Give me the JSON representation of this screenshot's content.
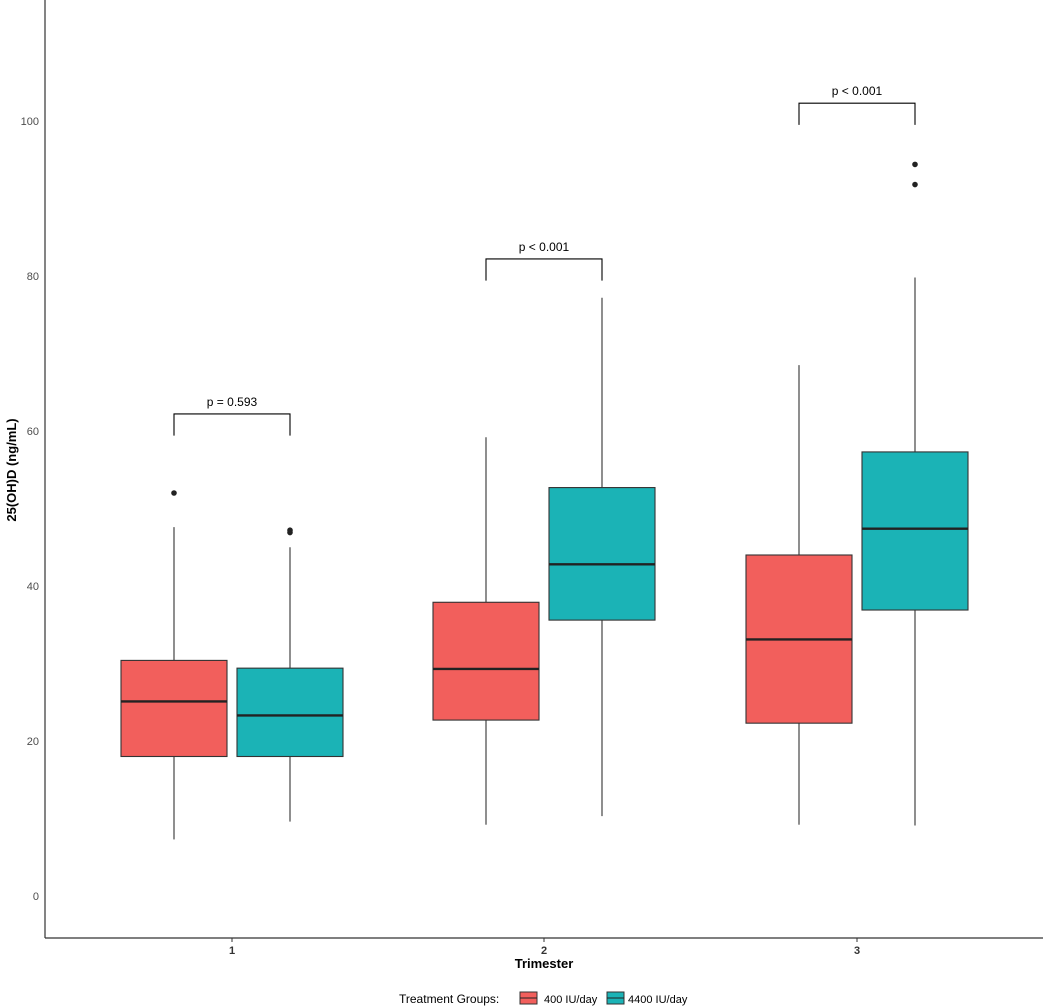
{
  "chart_data": {
    "type": "boxplot",
    "xlabel": "Trimester",
    "ylabel": "25(OH)D (ng/mL)",
    "ylim": [
      -5,
      116
    ],
    "yticks": [
      0,
      20,
      40,
      60,
      80,
      100
    ],
    "categories": [
      "1",
      "2",
      "3"
    ],
    "legend": {
      "title": "Treatment Groups:",
      "placement": "bottom"
    },
    "series": [
      {
        "name": "400 IU/day",
        "color": "#F25F5C",
        "boxes": [
          {
            "category": "1",
            "whisker_low": 7.3,
            "q1": 18.0,
            "median": 25.1,
            "q3": 30.4,
            "whisker_high": 47.6,
            "outliers": [
              52.0
            ]
          },
          {
            "category": "2",
            "whisker_low": 9.2,
            "q1": 22.7,
            "median": 29.3,
            "q3": 37.9,
            "whisker_high": 59.2,
            "outliers": []
          },
          {
            "category": "3",
            "whisker_low": 9.2,
            "q1": 22.3,
            "median": 33.1,
            "q3": 44.0,
            "whisker_high": 68.5,
            "outliers": []
          }
        ]
      },
      {
        "name": "4400 IU/day",
        "color": "#1BB3B6",
        "boxes": [
          {
            "category": "1",
            "whisker_low": 9.6,
            "q1": 18.0,
            "median": 23.3,
            "q3": 29.4,
            "whisker_high": 45.0,
            "outliers": [
              46.9,
              47.2
            ]
          },
          {
            "category": "2",
            "whisker_low": 10.3,
            "q1": 35.6,
            "median": 42.8,
            "q3": 52.7,
            "whisker_high": 77.2,
            "outliers": []
          },
          {
            "category": "3",
            "whisker_low": 9.1,
            "q1": 36.9,
            "median": 47.4,
            "q3": 57.3,
            "whisker_high": 79.8,
            "outliers": [
              91.8,
              94.4
            ]
          }
        ]
      }
    ],
    "annotations": [
      {
        "category": "1",
        "text": "p = 0.593",
        "y": 62.2,
        "drop": 2.8
      },
      {
        "category": "2",
        "text": "p < 0.001",
        "y": 82.2,
        "drop": 2.8
      },
      {
        "category": "3",
        "text": "p < 0.001",
        "y": 102.3,
        "drop": 2.8
      }
    ]
  }
}
